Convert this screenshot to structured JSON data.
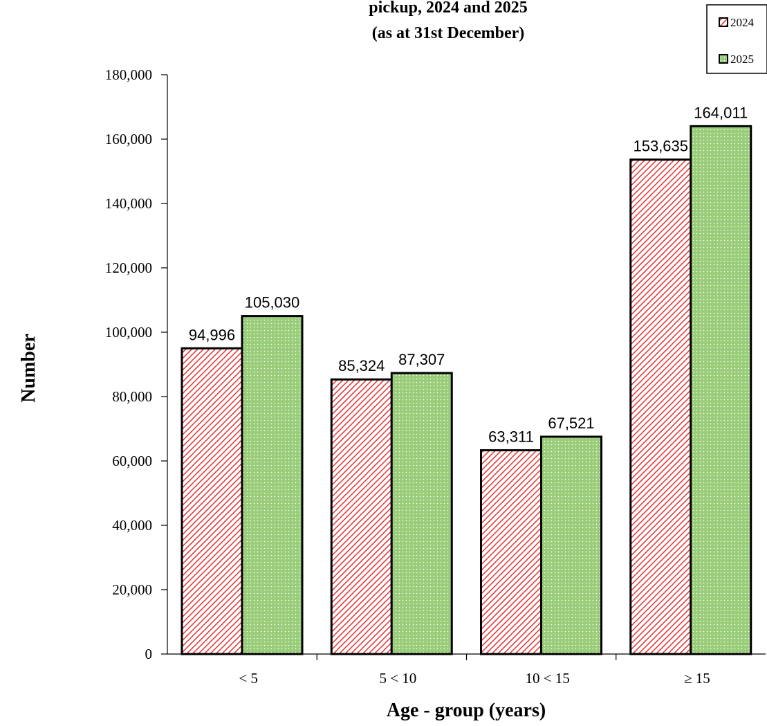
{
  "colors": {
    "series_2024_fill": "#e53b3b",
    "series_2024_bg": "#ffffff",
    "series_2025_fill": "#9acd7a",
    "series_2025_dot": "#ffffff",
    "bar_stroke": "#000000",
    "axis": "#000000",
    "text": "#000000"
  },
  "chart_data": {
    "type": "bar",
    "title_lines": [
      "pickup, 2024 and 2025",
      "(as at 31st  December)"
    ],
    "xlabel": "Age - group (years)",
    "ylabel": "Number",
    "categories": [
      "<  5",
      "5 < 10",
      "10 < 15",
      "≥ 15"
    ],
    "series": [
      {
        "name": "2024",
        "values": [
          94996,
          85324,
          63311,
          153635
        ],
        "labels": [
          "94,996",
          "85,324",
          "63,311",
          "153,635"
        ]
      },
      {
        "name": "2025",
        "values": [
          105030,
          87307,
          67521,
          164011
        ],
        "labels": [
          "105,030",
          "87,307",
          "67,521",
          "164,011"
        ]
      }
    ],
    "ylim": [
      0,
      180000
    ],
    "yticks": [
      0,
      20000,
      40000,
      60000,
      80000,
      100000,
      120000,
      140000,
      160000,
      180000
    ],
    "ytick_labels": [
      "0",
      "20,000",
      "40,000",
      "60,000",
      "80,000",
      "100,000",
      "120,000",
      "140,000",
      "160,000",
      "180,000"
    ],
    "grid": false,
    "legend_position": "top-right"
  }
}
